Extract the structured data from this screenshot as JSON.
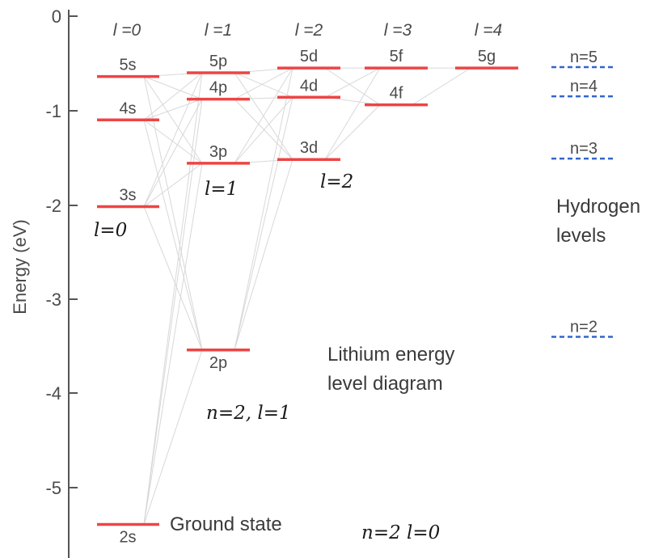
{
  "axis": {
    "label": "Energy (eV)",
    "ticks": [
      "0",
      "-1",
      "-2",
      "-3",
      "-4",
      "-5"
    ]
  },
  "columns": [
    "l =0",
    "l =1",
    "l =2",
    "l =3",
    "l =4"
  ],
  "levels": [
    {
      "label": "5s",
      "l": 0,
      "energy": -0.64
    },
    {
      "label": "4s",
      "l": 0,
      "energy": -1.1
    },
    {
      "label": "3s",
      "l": 0,
      "energy": -2.02
    },
    {
      "label": "2s",
      "l": 0,
      "energy": -5.39
    },
    {
      "label": "5p",
      "l": 1,
      "energy": -0.6
    },
    {
      "label": "4p",
      "l": 1,
      "energy": -0.88
    },
    {
      "label": "3p",
      "l": 1,
      "energy": -1.56
    },
    {
      "label": "2p",
      "l": 1,
      "energy": -3.54
    },
    {
      "label": "5d",
      "l": 2,
      "energy": -0.55
    },
    {
      "label": "4d",
      "l": 2,
      "energy": -0.86
    },
    {
      "label": "3d",
      "l": 2,
      "energy": -1.52
    },
    {
      "label": "5f",
      "l": 3,
      "energy": -0.55
    },
    {
      "label": "4f",
      "l": 3,
      "energy": -0.94
    },
    {
      "label": "5g",
      "l": 4,
      "energy": -0.55
    }
  ],
  "hydrogen": {
    "levels": [
      {
        "label": "n=5",
        "energy": -0.54
      },
      {
        "label": "n=4",
        "energy": -0.85
      },
      {
        "label": "n=3",
        "energy": -1.51
      },
      {
        "label": "n=2",
        "energy": -3.4
      }
    ],
    "caption_line1": "Hydrogen",
    "caption_line2": "levels"
  },
  "caption": {
    "line1": "Lithium energy",
    "line2": "level diagram"
  },
  "ground_state_label": "Ground state",
  "handwritten": {
    "l0": "l=0",
    "l1": "l=1",
    "l2": "l=2",
    "n2l1": "n=2, l=1",
    "n2l0": "n=2 l=0"
  },
  "colors": {
    "level": "#ee4444",
    "hydrogen": "#3366cc",
    "axis": "#555555",
    "transition": "#d8d8d8"
  }
}
